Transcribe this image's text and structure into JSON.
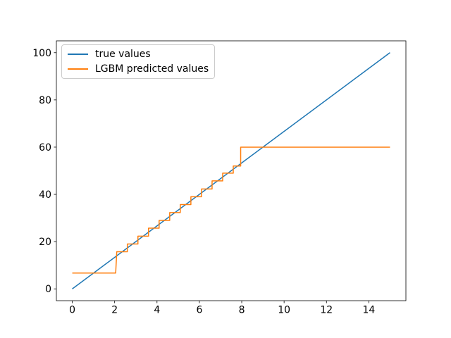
{
  "figure": {
    "background": "#ffffff"
  },
  "chart_data": {
    "type": "line",
    "title": "",
    "xlabel": "",
    "ylabel": "",
    "xlim": [
      -0.75,
      15.75
    ],
    "ylim": [
      -5,
      105
    ],
    "xticks": [
      0,
      2,
      4,
      6,
      8,
      10,
      12,
      14
    ],
    "yticks": [
      0,
      20,
      40,
      60,
      80,
      100
    ],
    "grid": false,
    "legend": {
      "position": "upper-left",
      "border_color": "#cccccc",
      "background_color": "#ffffff"
    },
    "series": [
      {
        "name": "true values",
        "color": "#1f77b4",
        "points": [
          [
            0,
            0
          ],
          [
            15,
            100
          ]
        ]
      },
      {
        "name": "LGBM predicted values",
        "color": "#ff7f0e",
        "points": [
          [
            0,
            6.7
          ],
          [
            2.05,
            6.7
          ],
          [
            2.1,
            15.7
          ],
          [
            2.6,
            15.7
          ],
          [
            2.6,
            19.0
          ],
          [
            3.1,
            19.0
          ],
          [
            3.1,
            22.3
          ],
          [
            3.6,
            22.3
          ],
          [
            3.6,
            25.7
          ],
          [
            4.1,
            25.7
          ],
          [
            4.1,
            29.0
          ],
          [
            4.6,
            29.0
          ],
          [
            4.6,
            32.3
          ],
          [
            5.1,
            32.3
          ],
          [
            5.1,
            35.7
          ],
          [
            5.6,
            35.7
          ],
          [
            5.6,
            39.0
          ],
          [
            6.1,
            39.0
          ],
          [
            6.1,
            42.3
          ],
          [
            6.6,
            42.3
          ],
          [
            6.6,
            45.7
          ],
          [
            7.1,
            45.7
          ],
          [
            7.1,
            49.0
          ],
          [
            7.6,
            49.0
          ],
          [
            7.6,
            52.0
          ],
          [
            7.95,
            52.0
          ],
          [
            7.95,
            60.0
          ],
          [
            15,
            60.0
          ]
        ]
      }
    ]
  }
}
